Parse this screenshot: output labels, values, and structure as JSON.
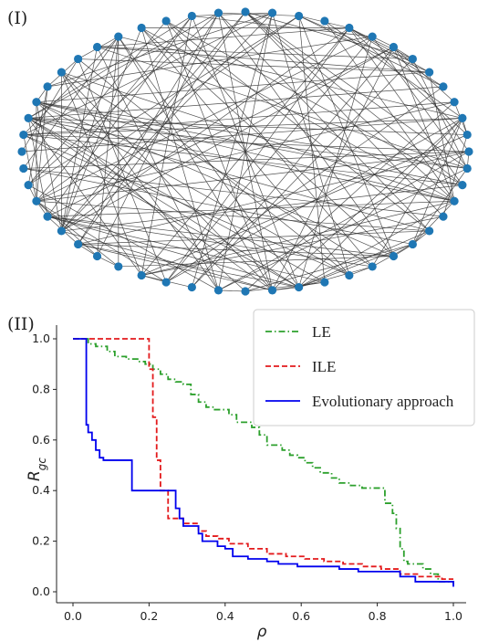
{
  "panels": {
    "top_label": "(I)",
    "bottom_label": "(II)"
  },
  "chart_data": [
    {
      "type": "network",
      "layout": "circular",
      "node_count": 52,
      "node_color": "#1f77b4",
      "edge_color": "#333333",
      "edge_count": 190
    },
    {
      "type": "line",
      "xlabel": "ρ",
      "ylabel": "R",
      "ylabel_subscript": "gc",
      "xlim": [
        0.0,
        1.0
      ],
      "ylim": [
        0.0,
        1.0
      ],
      "xticks": [
        "0.0",
        "0.2",
        "0.4",
        "0.6",
        "0.8",
        "1.0"
      ],
      "yticks": [
        "0.0",
        "0.2",
        "0.4",
        "0.6",
        "0.8",
        "1.0"
      ],
      "legend_position": "top-right",
      "grid": false,
      "series": [
        {
          "name": "LE",
          "color": "#2ca02c",
          "dash": "dashdot",
          "x": [
            0.0,
            0.04,
            0.06,
            0.09,
            0.11,
            0.14,
            0.17,
            0.19,
            0.21,
            0.23,
            0.25,
            0.27,
            0.29,
            0.31,
            0.33,
            0.35,
            0.37,
            0.41,
            0.43,
            0.45,
            0.47,
            0.49,
            0.51,
            0.55,
            0.57,
            0.59,
            0.61,
            0.63,
            0.65,
            0.68,
            0.7,
            0.73,
            0.76,
            0.8,
            0.82,
            0.84,
            0.85,
            0.86,
            0.87,
            0.88,
            0.92,
            0.94,
            0.96,
            1.0
          ],
          "y": [
            1.0,
            0.98,
            0.97,
            0.95,
            0.93,
            0.92,
            0.91,
            0.9,
            0.88,
            0.86,
            0.84,
            0.83,
            0.82,
            0.78,
            0.75,
            0.73,
            0.72,
            0.7,
            0.67,
            0.67,
            0.65,
            0.62,
            0.58,
            0.56,
            0.54,
            0.53,
            0.51,
            0.49,
            0.47,
            0.45,
            0.43,
            0.42,
            0.41,
            0.41,
            0.35,
            0.31,
            0.25,
            0.17,
            0.12,
            0.11,
            0.09,
            0.07,
            0.04,
            0.03
          ]
        },
        {
          "name": "ILE",
          "color": "#e31a1c",
          "dash": "dashed",
          "x": [
            0.0,
            0.19,
            0.2,
            0.21,
            0.22,
            0.23,
            0.25,
            0.29,
            0.33,
            0.35,
            0.38,
            0.41,
            0.46,
            0.51,
            0.56,
            0.61,
            0.66,
            0.71,
            0.76,
            0.81,
            0.86,
            0.91,
            0.97,
            1.0
          ],
          "y": [
            1.0,
            1.0,
            0.88,
            0.69,
            0.52,
            0.4,
            0.29,
            0.27,
            0.24,
            0.22,
            0.21,
            0.19,
            0.17,
            0.15,
            0.14,
            0.13,
            0.12,
            0.11,
            0.1,
            0.09,
            0.07,
            0.06,
            0.05,
            0.05
          ]
        },
        {
          "name": "Evolutionary approach",
          "color": "#0000ee",
          "dash": "solid",
          "x": [
            0.0,
            0.03,
            0.035,
            0.04,
            0.05,
            0.06,
            0.07,
            0.08,
            0.1,
            0.14,
            0.155,
            0.17,
            0.25,
            0.27,
            0.28,
            0.29,
            0.33,
            0.34,
            0.36,
            0.38,
            0.4,
            0.42,
            0.46,
            0.51,
            0.54,
            0.59,
            0.65,
            0.7,
            0.75,
            0.82,
            0.86,
            0.9,
            0.96,
            1.0
          ],
          "y": [
            1.0,
            1.0,
            0.66,
            0.63,
            0.6,
            0.56,
            0.53,
            0.52,
            0.52,
            0.52,
            0.4,
            0.4,
            0.4,
            0.33,
            0.29,
            0.26,
            0.23,
            0.2,
            0.2,
            0.18,
            0.17,
            0.14,
            0.13,
            0.12,
            0.11,
            0.1,
            0.1,
            0.09,
            0.08,
            0.08,
            0.06,
            0.04,
            0.04,
            0.02
          ]
        }
      ]
    }
  ]
}
